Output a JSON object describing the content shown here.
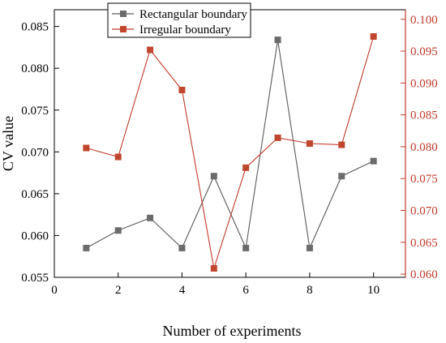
{
  "chart_data": {
    "type": "line",
    "title": "",
    "xlabel": "Number of experiments",
    "ylabel": "CV value",
    "ylabel_right": "",
    "x": [
      1,
      2,
      3,
      4,
      5,
      6,
      7,
      8,
      9,
      10
    ],
    "xlim": [
      0,
      11
    ],
    "xticks": [
      "0",
      "2",
      "4",
      "6",
      "8",
      "10"
    ],
    "ylim_left": [
      0.055,
      0.087
    ],
    "yticks_left": [
      "0.055",
      "0.060",
      "0.065",
      "0.070",
      "0.075",
      "0.080",
      "0.085"
    ],
    "ylim_right": [
      0.0595,
      0.1015
    ],
    "yticks_right": [
      "0.060",
      "0.065",
      "0.070",
      "0.075",
      "0.080",
      "0.085",
      "0.090",
      "0.095",
      "0.100"
    ],
    "grid": false,
    "legend_position": "top-center",
    "series": [
      {
        "name": "Rectangular boundary",
        "axis": "left",
        "color": "#5a5a5a",
        "marker_color": "#6b6b6b",
        "values": [
          0.0585,
          0.0606,
          0.0621,
          0.0585,
          0.0671,
          0.0585,
          0.0834,
          0.0585,
          0.0671,
          0.0689
        ]
      },
      {
        "name": "Irregular boundary",
        "axis": "right",
        "color": "#c0392b",
        "marker_color": "#c0472e",
        "values": [
          0.0798,
          0.0784,
          0.0952,
          0.0889,
          0.0609,
          0.0767,
          0.0814,
          0.0805,
          0.0803,
          0.0973
        ]
      }
    ],
    "left_axis_color": "#000000",
    "right_axis_color": "#c0392b"
  }
}
